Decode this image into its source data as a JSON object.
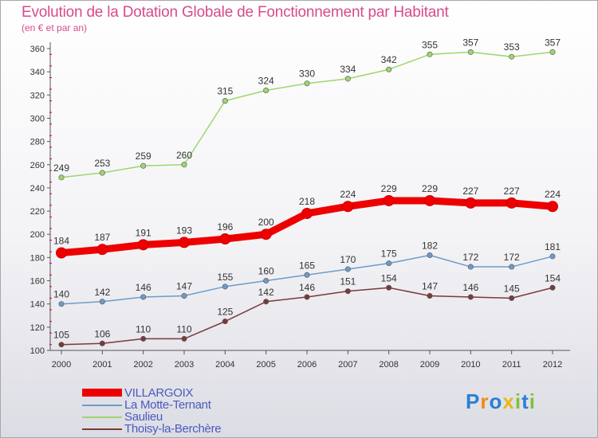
{
  "header": {
    "title": "Evolution de la Dotation Globale de Fonctionnement par Habitant",
    "subtitle": "(en € et par an)"
  },
  "colors": {
    "title": "#d64b8c",
    "axis": "#555555",
    "grid_tick": "#cc0044",
    "legend_text": "#4a5ac0"
  },
  "chart_data": {
    "type": "line",
    "title": "Evolution de la Dotation Globale de Fonctionnement par Habitant",
    "subtitle": "(en € et par an)",
    "xlabel": "",
    "ylabel": "",
    "ylim": [
      100,
      360
    ],
    "y_ticks": [
      100,
      120,
      140,
      160,
      180,
      200,
      220,
      240,
      260,
      280,
      300,
      320,
      340,
      360
    ],
    "categories": [
      "2000",
      "2001",
      "2002",
      "2003",
      "2004",
      "2005",
      "2006",
      "2007",
      "2008",
      "2009",
      "2010",
      "2011",
      "2012"
    ],
    "legend_position": "bottom-left",
    "series": [
      {
        "name": "VILLARGOIX",
        "color": "#ee0000",
        "values": [
          184,
          187,
          191,
          193,
          196,
          200,
          218,
          224,
          229,
          229,
          227,
          227,
          224
        ]
      },
      {
        "name": "La Motte-Ternant",
        "color": "#6e9bc8",
        "values": [
          140,
          142,
          146,
          147,
          155,
          160,
          165,
          170,
          175,
          182,
          172,
          172,
          181
        ]
      },
      {
        "name": "Saulieu",
        "color": "#9ed66e",
        "values": [
          249,
          253,
          259,
          260,
          315,
          324,
          330,
          334,
          342,
          355,
          357,
          353,
          357
        ]
      },
      {
        "name": "Thoisy-la-Berchère",
        "color": "#7a3a3a",
        "values": [
          105,
          106,
          110,
          110,
          125,
          142,
          146,
          151,
          154,
          147,
          146,
          145,
          154
        ]
      }
    ]
  },
  "legend": {
    "items": [
      {
        "label": "VILLARGOIX"
      },
      {
        "label": "La Motte-Ternant"
      },
      {
        "label": "Saulieu"
      },
      {
        "label": "Thoisy-la-Berchère"
      }
    ]
  },
  "logo": {
    "text": "Proxiti",
    "letters": [
      "P",
      "r",
      "o",
      "x",
      "i",
      "t",
      "i"
    ],
    "letter_colors": [
      "#2a7fd4",
      "#f08a1c",
      "#2a7fd4",
      "#e8b81a",
      "#7cc23e",
      "#2a7fd4",
      "#7cc23e"
    ]
  }
}
